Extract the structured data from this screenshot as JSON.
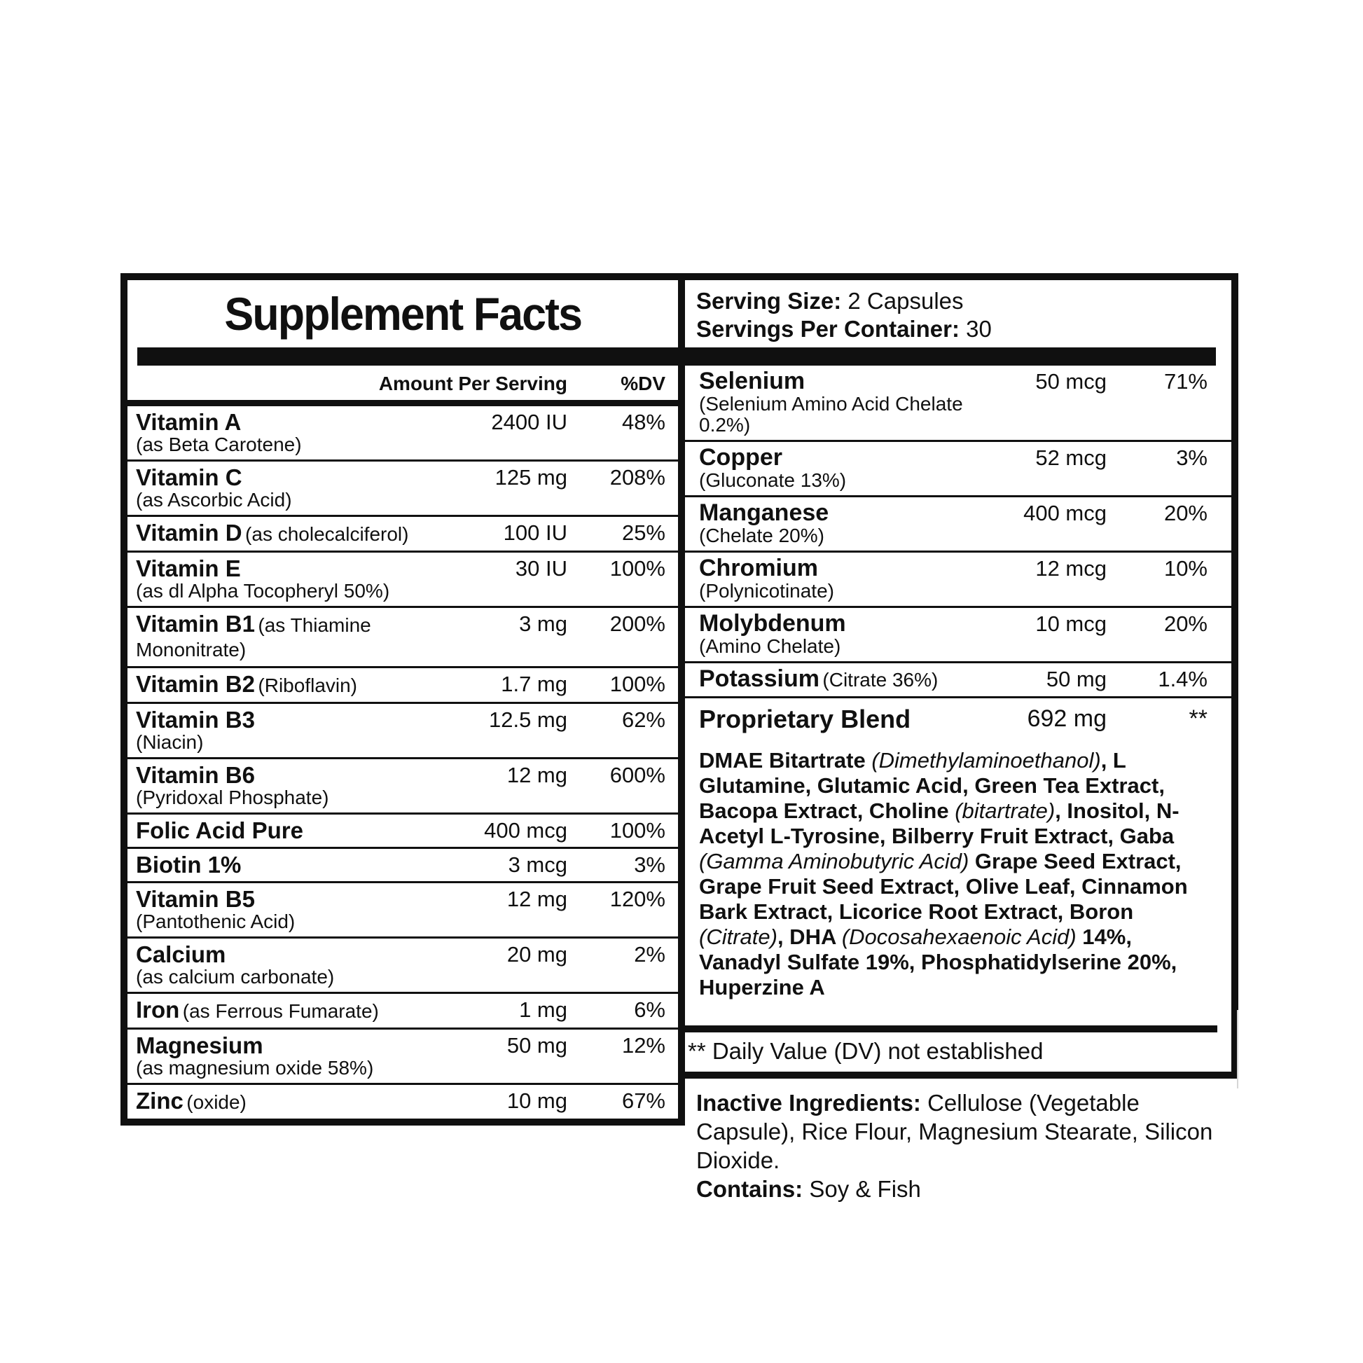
{
  "label": {
    "title": "Supplement Facts",
    "serving": {
      "size_label": "Serving Size:",
      "size_value": " 2 Capsules",
      "container_label": "Servings Per Container:",
      "container_value": " 30"
    },
    "table_header": {
      "amount": "Amount Per Serving",
      "dv": "%DV"
    },
    "left_rows": [
      {
        "name": "Vitamin A",
        "sub": "(as Beta Carotene)",
        "amount": "2400 IU",
        "dv": "48%"
      },
      {
        "name": "Vitamin C",
        "sub": "(as Ascorbic Acid)",
        "amount": "125 mg",
        "dv": "208%"
      },
      {
        "name": "Vitamin D",
        "suffix": "(as cholecalciferol)",
        "amount": "100 IU",
        "dv": "25%"
      },
      {
        "name": "Vitamin E",
        "sub": "(as dl Alpha Tocopheryl 50%)",
        "amount": "30 IU",
        "dv": "100%"
      },
      {
        "name": "Vitamin B1",
        "suffix": "(as Thiamine Mononitrate)",
        "amount": "3 mg",
        "dv": "200%"
      },
      {
        "name": "Vitamin B2",
        "suffix": "(Riboflavin)",
        "amount": "1.7 mg",
        "dv": "100%"
      },
      {
        "name": "Vitamin B3",
        "sub": "(Niacin)",
        "amount": "12.5 mg",
        "dv": "62%"
      },
      {
        "name": "Vitamin B6",
        "sub": "(Pyridoxal Phosphate)",
        "amount": "12 mg",
        "dv": "600%"
      },
      {
        "name": "Folic Acid Pure",
        "amount": "400 mcg",
        "dv": "100%"
      },
      {
        "name": "Biotin 1%",
        "amount": "3 mcg",
        "dv": "3%"
      },
      {
        "name": "Vitamin B5",
        "sub": "(Pantothenic Acid)",
        "amount": "12 mg",
        "dv": "120%"
      },
      {
        "name": "Calcium",
        "sub": "(as calcium carbonate)",
        "amount": "20 mg",
        "dv": "2%"
      },
      {
        "name": "Iron",
        "suffix": "(as Ferrous Fumarate)",
        "amount": "1 mg",
        "dv": "6%"
      },
      {
        "name": "Magnesium",
        "sub": "(as magnesium oxide 58%)",
        "amount": "50 mg",
        "dv": "12%"
      },
      {
        "name": "Zinc",
        "suffix": "(oxide)",
        "amount": "10 mg",
        "dv": "67%",
        "no_sep": true
      }
    ],
    "right_rows": [
      {
        "name": "Selenium",
        "sub": "(Selenium Amino Acid Chelate 0.2%)",
        "amount": "50 mcg",
        "dv": "71%"
      },
      {
        "name": "Copper",
        "sub": "(Gluconate 13%)",
        "amount": "52 mcg",
        "dv": "3%"
      },
      {
        "name": "Manganese",
        "sub": "(Chelate 20%)",
        "amount": "400 mcg",
        "dv": "20%"
      },
      {
        "name": "Chromium",
        "sub": "(Polynicotinate)",
        "amount": "12 mcg",
        "dv": "10%"
      },
      {
        "name": "Molybdenum",
        "sub": "(Amino Chelate)",
        "amount": "10 mcg",
        "dv": "20%"
      },
      {
        "name": "Potassium",
        "suffix": "(Citrate 36%)",
        "amount": "50 mg",
        "dv": "1.4%"
      },
      {
        "name": "Proprietary Blend",
        "amount": "692 mg",
        "dv": "**",
        "no_sep": true,
        "big": true
      }
    ],
    "blend_segments": [
      {
        "text": "DMAE Bitartrate ",
        "italic": false
      },
      {
        "text": "(Dimethylaminoethanol)",
        "italic": true
      },
      {
        "text": ", L Glutamine, Glutamic Acid, Green Tea Extract, Bacopa Extract, Choline ",
        "italic": false
      },
      {
        "text": "(bitartrate)",
        "italic": true
      },
      {
        "text": ", Inositol, N-Acetyl L-Tyrosine, Bilberry Fruit Extract, Gaba ",
        "italic": false
      },
      {
        "text": "(Gamma Aminobutyric Acid)",
        "italic": true
      },
      {
        "text": " Grape Seed Extract, Grape Fruit Seed Extract, Olive Leaf, Cinnamon Bark Extract, Licorice Root Extract, Boron ",
        "italic": false
      },
      {
        "text": "(Citrate)",
        "italic": true
      },
      {
        "text": ", DHA ",
        "italic": false
      },
      {
        "text": "(Docosahexaenoic Acid)",
        "italic": true
      },
      {
        "text": " 14%, Vanadyl Sulfate 19%, Phosphatidylserine 20%, Huperzine A",
        "italic": false
      }
    ],
    "footnote": "** Daily Value (DV) not established",
    "inactive": {
      "label": "Inactive Ingredients:",
      "text": " Cellulose (Vegetable Capsule), Rice Flour, Magnesium Stearate, Silicon Dioxide.",
      "contains_label": "Contains:",
      "contains_text": " Soy & Fish"
    },
    "colors": {
      "ink": "#101010",
      "background": "#ffffff"
    }
  }
}
